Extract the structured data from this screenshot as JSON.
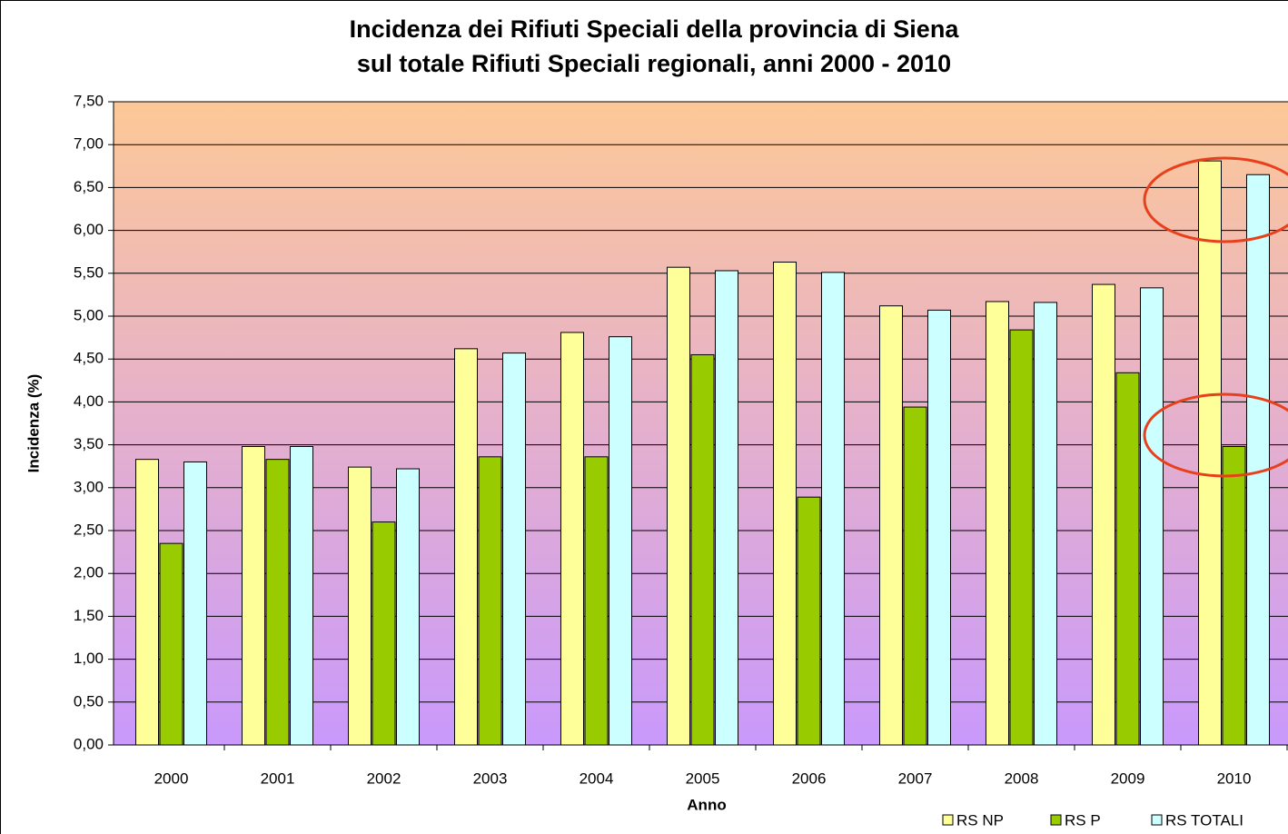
{
  "chart_data": {
    "type": "bar",
    "title": [
      "Incidenza dei Rifiuti Speciali della provincia di Siena",
      "sul totale Rifiuti Speciali regionali, anni 2000 - 2010"
    ],
    "x_label": "Anno",
    "y_label": "Incidenza (%)",
    "categories": [
      "2000",
      "2001",
      "2002",
      "2003",
      "2004",
      "2005",
      "2006",
      "2007",
      "2008",
      "2009",
      "2010"
    ],
    "series": [
      {
        "name": "RS NP",
        "color": "#ffff99",
        "values": [
          3.33,
          3.48,
          3.24,
          4.62,
          4.81,
          5.57,
          5.63,
          5.12,
          5.17,
          5.37,
          6.81
        ]
      },
      {
        "name": "RS P",
        "color": "#99cc00",
        "values": [
          2.35,
          3.33,
          2.6,
          3.36,
          3.36,
          4.55,
          2.89,
          3.94,
          4.84,
          4.34,
          3.48
        ]
      },
      {
        "name": "RS TOTALI",
        "color": "#ccffff",
        "values": [
          3.3,
          3.48,
          3.22,
          4.57,
          4.76,
          5.53,
          5.51,
          5.07,
          5.16,
          5.33,
          6.65
        ]
      }
    ],
    "ylim": [
      0,
      7.5
    ],
    "yticks": [
      {
        "value": 0,
        "label": "0,00"
      },
      {
        "value": 0.5,
        "label": "0,50"
      },
      {
        "value": 1,
        "label": "1,00"
      },
      {
        "value": 1.5,
        "label": "1,50"
      },
      {
        "value": 2,
        "label": "2,00"
      },
      {
        "value": 2.5,
        "label": "2,50"
      },
      {
        "value": 3,
        "label": "3,00"
      },
      {
        "value": 3.5,
        "label": "3,50"
      },
      {
        "value": 4,
        "label": "4,00"
      },
      {
        "value": 4.5,
        "label": "4,50"
      },
      {
        "value": 5,
        "label": "5,00"
      },
      {
        "value": 5.5,
        "label": "5,50"
      },
      {
        "value": 6,
        "label": "6,00"
      },
      {
        "value": 6.5,
        "label": "6,50"
      },
      {
        "value": 7,
        "label": "7,00"
      },
      {
        "value": 7.5,
        "label": "7,50"
      }
    ],
    "grid": true,
    "legend": "bottom-right"
  }
}
